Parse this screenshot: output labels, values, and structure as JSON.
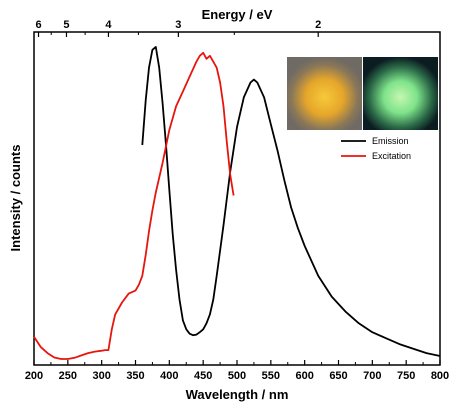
{
  "chart_data": {
    "type": "line",
    "xlabel": "Wavelength / nm",
    "ylabel": "Intensity / counts",
    "top_axis_label": "Energy / eV",
    "xlim": [
      200,
      800
    ],
    "ylim": [
      0,
      1.1
    ],
    "x_ticks": [
      200,
      250,
      300,
      350,
      400,
      450,
      500,
      550,
      600,
      650,
      700,
      750,
      800
    ],
    "top_ticks": [
      {
        "energy": 6,
        "label": "6"
      },
      {
        "energy": 5,
        "label": "5"
      },
      {
        "energy": 4,
        "label": "4"
      },
      {
        "energy": 3,
        "label": "3"
      },
      {
        "energy": 2,
        "label": "2"
      }
    ],
    "legend_position": "top-right",
    "series": [
      {
        "name": "Emission",
        "color": "#000000",
        "x": [
          360,
          365,
          370,
          375,
          380,
          385,
          390,
          395,
          400,
          405,
          410,
          415,
          420,
          425,
          430,
          435,
          440,
          445,
          450,
          455,
          460,
          465,
          470,
          480,
          490,
          500,
          510,
          520,
          525,
          530,
          540,
          550,
          560,
          570,
          580,
          590,
          600,
          620,
          640,
          660,
          680,
          700,
          720,
          740,
          760,
          780,
          800
        ],
        "y": [
          0.72,
          0.87,
          0.98,
          1.04,
          1.05,
          0.98,
          0.86,
          0.72,
          0.57,
          0.42,
          0.3,
          0.2,
          0.13,
          0.1,
          0.085,
          0.08,
          0.082,
          0.09,
          0.1,
          0.12,
          0.15,
          0.2,
          0.28,
          0.45,
          0.63,
          0.78,
          0.88,
          0.93,
          0.94,
          0.93,
          0.88,
          0.79,
          0.7,
          0.6,
          0.51,
          0.44,
          0.38,
          0.28,
          0.21,
          0.16,
          0.12,
          0.09,
          0.07,
          0.05,
          0.035,
          0.02,
          0.01
        ]
      },
      {
        "name": "Excitation",
        "color": "#e8150d",
        "x": [
          200,
          210,
          220,
          230,
          240,
          250,
          260,
          270,
          280,
          290,
          300,
          305,
          310,
          315,
          320,
          325,
          330,
          340,
          350,
          355,
          360,
          365,
          370,
          375,
          380,
          390,
          400,
          410,
          420,
          430,
          440,
          445,
          450,
          455,
          460,
          465,
          470,
          475,
          480,
          485,
          490,
          495
        ],
        "y": [
          0.075,
          0.04,
          0.02,
          0.005,
          0.0,
          0.0,
          0.004,
          0.012,
          0.02,
          0.025,
          0.028,
          0.03,
          0.03,
          0.1,
          0.15,
          0.17,
          0.19,
          0.22,
          0.23,
          0.25,
          0.28,
          0.35,
          0.43,
          0.5,
          0.56,
          0.66,
          0.77,
          0.85,
          0.9,
          0.95,
          1.0,
          1.02,
          1.03,
          1.01,
          1.02,
          1.0,
          0.98,
          0.93,
          0.85,
          0.73,
          0.62,
          0.55
        ]
      }
    ]
  }
}
